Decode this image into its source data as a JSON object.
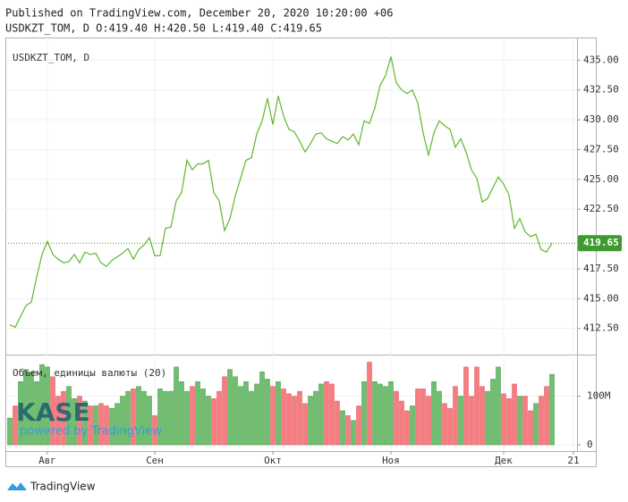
{
  "header": {
    "published": "Published on TradingView.com, December 20, 2020 10:20:00 +06",
    "symbol_line": "USDKZT_TOM, D O:419.40 H:420.50 L:419.40 C:419.65"
  },
  "chart_data": [
    {
      "type": "line",
      "title": "USDKZT_TOM, D",
      "categories": [
        null,
        null,
        null,
        null,
        null,
        null,
        null,
        "Авг",
        null,
        null,
        null,
        null,
        null,
        null,
        null,
        null,
        null,
        null,
        null,
        null,
        null,
        null,
        null,
        null,
        null,
        null,
        null,
        "Сен",
        null,
        null,
        null,
        null,
        null,
        null,
        null,
        null,
        null,
        null,
        null,
        null,
        null,
        null,
        null,
        null,
        null,
        null,
        null,
        null,
        null,
        "Окт",
        null,
        null,
        null,
        null,
        null,
        null,
        null,
        null,
        null,
        null,
        null,
        null,
        null,
        null,
        null,
        null,
        null,
        null,
        null,
        null,
        null,
        "Ноя",
        null,
        null,
        null,
        null,
        null,
        null,
        null,
        null,
        null,
        null,
        null,
        null,
        null,
        null,
        null,
        null,
        null,
        null,
        null,
        null,
        "Дек",
        null,
        null,
        null,
        null,
        null,
        null,
        null,
        null,
        null,
        null,
        null,
        null,
        "21"
      ],
      "values": [
        412.8,
        412.6,
        413.5,
        414.4,
        414.7,
        416.8,
        418.7,
        419.8,
        418.7,
        418.3,
        418.0,
        418.1,
        418.7,
        418.0,
        418.9,
        418.7,
        418.8,
        418.0,
        417.7,
        418.2,
        418.5,
        418.8,
        419.2,
        418.3,
        419.1,
        419.5,
        420.1,
        418.6,
        418.6,
        420.9,
        421.0,
        423.2,
        423.9,
        426.6,
        425.8,
        426.3,
        426.3,
        426.6,
        423.9,
        423.2,
        420.7,
        421.7,
        423.6,
        425.1,
        426.6,
        426.8,
        428.8,
        429.9,
        431.8,
        429.6,
        432.0,
        430.3,
        429.2,
        429.0,
        428.2,
        427.3,
        428.0,
        428.8,
        428.9,
        428.4,
        428.2,
        428.0,
        428.6,
        428.3,
        428.8,
        427.9,
        429.9,
        429.7,
        431.0,
        432.9,
        433.7,
        435.3,
        433.1,
        432.5,
        432.2,
        432.5,
        431.4,
        428.9,
        427.0,
        428.9,
        429.9,
        429.5,
        429.2,
        427.7,
        428.4,
        427.3,
        425.8,
        425.1,
        423.1,
        423.4,
        424.3,
        425.2,
        424.6,
        423.7,
        420.9,
        421.7,
        420.6,
        420.2,
        420.4,
        419.1,
        418.9,
        419.65,
        null,
        null,
        null,
        null
      ],
      "color": "#5cb82c",
      "ylim": [
        410.3,
        436.9
      ],
      "yticks": [
        {
          "value": 412.5,
          "label": "412.50"
        },
        {
          "value": 415,
          "label": "415.00"
        },
        {
          "value": 417.5,
          "label": "417.50"
        },
        {
          "value": 422.5,
          "label": "422.50"
        },
        {
          "value": 425,
          "label": "425.00"
        },
        {
          "value": 427.5,
          "label": "427.50"
        },
        {
          "value": 430,
          "label": "430.00"
        },
        {
          "value": 432.5,
          "label": "432.50"
        },
        {
          "value": 435,
          "label": "435.00"
        }
      ],
      "grid": true,
      "last_value": 419.65,
      "last_color": "#3d9a2e"
    },
    {
      "type": "volume",
      "title": "Объем, единицы валюты (20)",
      "values": [
        55,
        80,
        130,
        155,
        150,
        130,
        165,
        160,
        140,
        100,
        110,
        120,
        95,
        100,
        90,
        80,
        80,
        85,
        80,
        75,
        85,
        100,
        110,
        115,
        120,
        110,
        100,
        60,
        115,
        110,
        110,
        160,
        130,
        110,
        120,
        130,
        115,
        100,
        95,
        110,
        140,
        155,
        140,
        120,
        130,
        110,
        125,
        150,
        135,
        120,
        130,
        115,
        105,
        100,
        110,
        85,
        100,
        110,
        125,
        130,
        125,
        90,
        70,
        60,
        50,
        80,
        130,
        170,
        130,
        125,
        120,
        130,
        110,
        90,
        70,
        80,
        115,
        115,
        100,
        130,
        110,
        85,
        75,
        120,
        100,
        160,
        100,
        160,
        120,
        110,
        135,
        160,
        105,
        95,
        125,
        100,
        100,
        70,
        85,
        100,
        120,
        145,
        null,
        null,
        null,
        null
      ],
      "up_color": "#6fbf6f",
      "down_color": "#f77c80",
      "ylim": [
        0,
        180
      ],
      "yticks": [
        0,
        {
          "value": 100,
          "label": "100M"
        }
      ]
    }
  ],
  "watermark": {
    "logo": "KASE",
    "tagline": "powered by TradingView"
  },
  "footer": {
    "brand": "TradingView"
  }
}
